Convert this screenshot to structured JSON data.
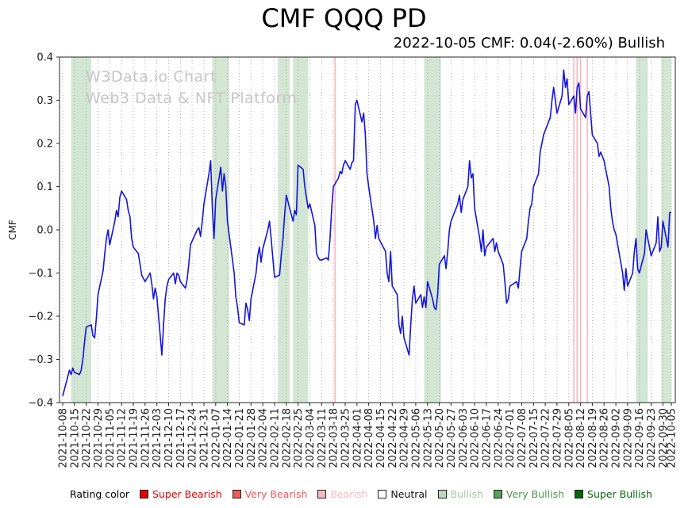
{
  "title": "CMF QQQ PD",
  "subtitle": "2022-10-05 CMF: 0.04(-2.60%) Bullish",
  "watermark": {
    "line1": "W3Data.io Chart",
    "line2": "Web3 Data & NFT Platform"
  },
  "legend": {
    "label": "Rating color",
    "items": [
      {
        "label": "Super Bearish",
        "color": "#e40303",
        "text_color": "#e40303"
      },
      {
        "label": "Very Bearish",
        "color": "#f15858",
        "text_color": "#f15858"
      },
      {
        "label": "Bearish",
        "color": "#f6b9c3",
        "text_color": "#f6b9c3"
      },
      {
        "label": "Neutral",
        "color": "#ffffff",
        "text_color": "#111111"
      },
      {
        "label": "Bullish",
        "color": "#bcd9bc",
        "text_color": "#a9c4a9"
      },
      {
        "label": "Very Bullish",
        "color": "#57a057",
        "text_color": "#4d9a4d"
      },
      {
        "label": "Super Bullish",
        "color": "#076607",
        "text_color": "#076607"
      }
    ]
  },
  "chart_data": {
    "type": "line",
    "title": "CMF QQQ PD",
    "xlabel": "",
    "ylabel": "CMF",
    "ylim": [
      -0.4,
      0.4
    ],
    "x_range": [
      "2021-10-08",
      "2022-10-05"
    ],
    "grid": "vertical-dotted",
    "line_color": "#1414dd",
    "band_color": "#d3e5d3",
    "bearish_line_color": "#f7adb7",
    "yticks": [
      0.4,
      0.3,
      0.2,
      0.1,
      0.0,
      -0.1,
      -0.2,
      -0.3,
      -0.4
    ],
    "ytick_labels": [
      "0.4",
      "0.3",
      "0.2",
      "0.1",
      "0.0",
      "−0.1",
      "−0.2",
      "−0.3",
      "−0.4"
    ],
    "xticks": [
      "2021-10-08",
      "2021-10-15",
      "2021-10-22",
      "2021-10-29",
      "2021-11-05",
      "2021-11-12",
      "2021-11-19",
      "2021-11-26",
      "2021-12-03",
      "2021-12-10",
      "2021-12-17",
      "2021-12-24",
      "2021-12-31",
      "2022-01-07",
      "2022-01-14",
      "2022-01-21",
      "2022-01-28",
      "2022-02-04",
      "2022-02-11",
      "2022-02-18",
      "2022-02-25",
      "2022-03-04",
      "2022-03-11",
      "2022-03-18",
      "2022-03-25",
      "2022-04-01",
      "2022-04-08",
      "2022-04-15",
      "2022-04-22",
      "2022-04-29",
      "2022-05-06",
      "2022-05-13",
      "2022-05-20",
      "2022-05-27",
      "2022-06-03",
      "2022-06-10",
      "2022-06-17",
      "2022-06-24",
      "2022-07-01",
      "2022-07-08",
      "2022-07-15",
      "2022-07-22",
      "2022-07-29",
      "2022-08-05",
      "2022-08-12",
      "2022-08-19",
      "2022-08-26",
      "2022-09-02",
      "2022-09-09",
      "2022-09-16",
      "2022-09-23",
      "2022-09-30",
      "2022-10-05"
    ],
    "bullish_bands": [
      [
        "2021-10-13",
        "2021-10-25"
      ],
      [
        "2022-01-05",
        "2022-01-15"
      ],
      [
        "2022-02-13",
        "2022-02-20"
      ],
      [
        "2022-02-22",
        "2022-03-03"
      ],
      [
        "2022-05-11",
        "2022-05-21"
      ],
      [
        "2022-09-14",
        "2022-09-21"
      ],
      [
        "2022-09-29",
        "2022-10-05"
      ]
    ],
    "bearish_lines": [
      "2022-03-19",
      "2022-08-08",
      "2022-08-10",
      "2022-08-12",
      "2022-08-16"
    ],
    "series_name": "CMF",
    "points": [
      [
        "2021-10-08",
        -0.385
      ],
      [
        "2021-10-11",
        -0.34
      ],
      [
        "2021-10-12",
        -0.325
      ],
      [
        "2021-10-13",
        -0.335
      ],
      [
        "2021-10-14",
        -0.32
      ],
      [
        "2021-10-15",
        -0.33
      ],
      [
        "2021-10-18",
        -0.335
      ],
      [
        "2021-10-19",
        -0.325
      ],
      [
        "2021-10-20",
        -0.3
      ],
      [
        "2021-10-21",
        -0.26
      ],
      [
        "2021-10-22",
        -0.225
      ],
      [
        "2021-10-25",
        -0.22
      ],
      [
        "2021-10-26",
        -0.245
      ],
      [
        "2021-10-27",
        -0.25
      ],
      [
        "2021-10-28",
        -0.205
      ],
      [
        "2021-10-29",
        -0.15
      ],
      [
        "2021-11-01",
        -0.095
      ],
      [
        "2021-11-02",
        -0.055
      ],
      [
        "2021-11-03",
        -0.02
      ],
      [
        "2021-11-04",
        0.0
      ],
      [
        "2021-11-05",
        -0.035
      ],
      [
        "2021-11-08",
        0.02
      ],
      [
        "2021-11-09",
        0.045
      ],
      [
        "2021-11-10",
        0.03
      ],
      [
        "2021-11-11",
        0.075
      ],
      [
        "2021-11-12",
        0.09
      ],
      [
        "2021-11-15",
        0.07
      ],
      [
        "2021-11-16",
        0.045
      ],
      [
        "2021-11-17",
        0.03
      ],
      [
        "2021-11-18",
        -0.02
      ],
      [
        "2021-11-19",
        -0.04
      ],
      [
        "2021-11-22",
        -0.055
      ],
      [
        "2021-11-23",
        -0.08
      ],
      [
        "2021-11-24",
        -0.105
      ],
      [
        "2021-11-26",
        -0.12
      ],
      [
        "2021-11-29",
        -0.1
      ],
      [
        "2021-11-30",
        -0.125
      ],
      [
        "2021-12-01",
        -0.16
      ],
      [
        "2021-12-02",
        -0.135
      ],
      [
        "2021-12-03",
        -0.155
      ],
      [
        "2021-12-06",
        -0.29
      ],
      [
        "2021-12-07",
        -0.22
      ],
      [
        "2021-12-08",
        -0.16
      ],
      [
        "2021-12-09",
        -0.13
      ],
      [
        "2021-12-10",
        -0.115
      ],
      [
        "2021-12-13",
        -0.1
      ],
      [
        "2021-12-14",
        -0.125
      ],
      [
        "2021-12-15",
        -0.1
      ],
      [
        "2021-12-16",
        -0.105
      ],
      [
        "2021-12-17",
        -0.12
      ],
      [
        "2021-12-20",
        -0.135
      ],
      [
        "2021-12-21",
        -0.115
      ],
      [
        "2021-12-22",
        -0.08
      ],
      [
        "2021-12-23",
        -0.035
      ],
      [
        "2021-12-27",
        0.0
      ],
      [
        "2021-12-28",
        0.005
      ],
      [
        "2021-12-29",
        -0.015
      ],
      [
        "2021-12-30",
        0.02
      ],
      [
        "2021-12-31",
        0.06
      ],
      [
        "2022-01-03",
        0.13
      ],
      [
        "2022-01-04",
        0.16
      ],
      [
        "2022-01-05",
        0.05
      ],
      [
        "2022-01-06",
        -0.02
      ],
      [
        "2022-01-07",
        0.07
      ],
      [
        "2022-01-10",
        0.145
      ],
      [
        "2022-01-11",
        0.09
      ],
      [
        "2022-01-12",
        0.13
      ],
      [
        "2022-01-13",
        0.1
      ],
      [
        "2022-01-14",
        0.02
      ],
      [
        "2022-01-18",
        -0.1
      ],
      [
        "2022-01-19",
        -0.155
      ],
      [
        "2022-01-20",
        -0.18
      ],
      [
        "2022-01-21",
        -0.215
      ],
      [
        "2022-01-24",
        -0.22
      ],
      [
        "2022-01-25",
        -0.17
      ],
      [
        "2022-01-26",
        -0.185
      ],
      [
        "2022-01-27",
        -0.21
      ],
      [
        "2022-01-28",
        -0.16
      ],
      [
        "2022-01-31",
        -0.1
      ],
      [
        "2022-02-01",
        -0.06
      ],
      [
        "2022-02-02",
        -0.04
      ],
      [
        "2022-02-03",
        -0.075
      ],
      [
        "2022-02-04",
        -0.045
      ],
      [
        "2022-02-07",
        0.0
      ],
      [
        "2022-02-08",
        0.02
      ],
      [
        "2022-02-09",
        -0.02
      ],
      [
        "2022-02-10",
        -0.065
      ],
      [
        "2022-02-11",
        -0.11
      ],
      [
        "2022-02-14",
        -0.105
      ],
      [
        "2022-02-15",
        -0.06
      ],
      [
        "2022-02-16",
        -0.02
      ],
      [
        "2022-02-17",
        0.035
      ],
      [
        "2022-02-18",
        0.08
      ],
      [
        "2022-02-22",
        0.02
      ],
      [
        "2022-02-23",
        0.045
      ],
      [
        "2022-02-24",
        0.035
      ],
      [
        "2022-02-25",
        0.15
      ],
      [
        "2022-02-28",
        0.14
      ],
      [
        "2022-03-01",
        0.1
      ],
      [
        "2022-03-02",
        0.075
      ],
      [
        "2022-03-03",
        0.05
      ],
      [
        "2022-03-04",
        0.06
      ],
      [
        "2022-03-07",
        0.01
      ],
      [
        "2022-03-08",
        -0.055
      ],
      [
        "2022-03-09",
        -0.065
      ],
      [
        "2022-03-10",
        -0.07
      ],
      [
        "2022-03-11",
        -0.07
      ],
      [
        "2022-03-14",
        -0.065
      ],
      [
        "2022-03-15",
        -0.07
      ],
      [
        "2022-03-16",
        -0.02
      ],
      [
        "2022-03-17",
        0.05
      ],
      [
        "2022-03-18",
        0.1
      ],
      [
        "2022-03-21",
        0.12
      ],
      [
        "2022-03-22",
        0.135
      ],
      [
        "2022-03-23",
        0.13
      ],
      [
        "2022-03-24",
        0.15
      ],
      [
        "2022-03-25",
        0.16
      ],
      [
        "2022-03-28",
        0.14
      ],
      [
        "2022-03-29",
        0.155
      ],
      [
        "2022-03-30",
        0.16
      ],
      [
        "2022-03-31",
        0.29
      ],
      [
        "2022-04-01",
        0.3
      ],
      [
        "2022-04-04",
        0.25
      ],
      [
        "2022-04-05",
        0.27
      ],
      [
        "2022-04-06",
        0.22
      ],
      [
        "2022-04-07",
        0.13
      ],
      [
        "2022-04-08",
        0.1
      ],
      [
        "2022-04-11",
        0.02
      ],
      [
        "2022-04-12",
        -0.02
      ],
      [
        "2022-04-13",
        0.01
      ],
      [
        "2022-04-14",
        -0.02
      ],
      [
        "2022-04-18",
        -0.05
      ],
      [
        "2022-04-19",
        -0.1
      ],
      [
        "2022-04-20",
        -0.12
      ],
      [
        "2022-04-21",
        -0.05
      ],
      [
        "2022-04-22",
        -0.13
      ],
      [
        "2022-04-25",
        -0.15
      ],
      [
        "2022-04-26",
        -0.22
      ],
      [
        "2022-04-27",
        -0.24
      ],
      [
        "2022-04-28",
        -0.2
      ],
      [
        "2022-04-29",
        -0.25
      ],
      [
        "2022-05-02",
        -0.29
      ],
      [
        "2022-05-03",
        -0.22
      ],
      [
        "2022-05-04",
        -0.16
      ],
      [
        "2022-05-05",
        -0.13
      ],
      [
        "2022-05-06",
        -0.17
      ],
      [
        "2022-05-09",
        -0.15
      ],
      [
        "2022-05-10",
        -0.18
      ],
      [
        "2022-05-11",
        -0.155
      ],
      [
        "2022-05-12",
        -0.18
      ],
      [
        "2022-05-13",
        -0.12
      ],
      [
        "2022-05-16",
        -0.16
      ],
      [
        "2022-05-17",
        -0.18
      ],
      [
        "2022-05-18",
        -0.185
      ],
      [
        "2022-05-19",
        -0.15
      ],
      [
        "2022-05-20",
        -0.08
      ],
      [
        "2022-05-23",
        -0.06
      ],
      [
        "2022-05-24",
        -0.09
      ],
      [
        "2022-05-25",
        -0.05
      ],
      [
        "2022-05-26",
        0.0
      ],
      [
        "2022-05-27",
        0.02
      ],
      [
        "2022-05-31",
        0.06
      ],
      [
        "2022-06-01",
        0.08
      ],
      [
        "2022-06-02",
        0.04
      ],
      [
        "2022-06-03",
        0.07
      ],
      [
        "2022-06-06",
        0.1
      ],
      [
        "2022-06-07",
        0.16
      ],
      [
        "2022-06-08",
        0.12
      ],
      [
        "2022-06-09",
        0.13
      ],
      [
        "2022-06-10",
        0.05
      ],
      [
        "2022-06-13",
        -0.02
      ],
      [
        "2022-06-14",
        -0.05
      ],
      [
        "2022-06-15",
        0.0
      ],
      [
        "2022-06-16",
        -0.06
      ],
      [
        "2022-06-17",
        -0.04
      ],
      [
        "2022-06-21",
        -0.02
      ],
      [
        "2022-06-22",
        -0.05
      ],
      [
        "2022-06-23",
        -0.03
      ],
      [
        "2022-06-24",
        -0.05
      ],
      [
        "2022-06-27",
        -0.08
      ],
      [
        "2022-06-28",
        -0.12
      ],
      [
        "2022-06-29",
        -0.17
      ],
      [
        "2022-06-30",
        -0.16
      ],
      [
        "2022-07-01",
        -0.13
      ],
      [
        "2022-07-05",
        -0.12
      ],
      [
        "2022-07-06",
        -0.135
      ],
      [
        "2022-07-07",
        -0.09
      ],
      [
        "2022-07-08",
        -0.05
      ],
      [
        "2022-07-11",
        -0.02
      ],
      [
        "2022-07-12",
        0.02
      ],
      [
        "2022-07-13",
        0.05
      ],
      [
        "2022-07-14",
        0.06
      ],
      [
        "2022-07-15",
        0.1
      ],
      [
        "2022-07-18",
        0.13
      ],
      [
        "2022-07-19",
        0.18
      ],
      [
        "2022-07-20",
        0.2
      ],
      [
        "2022-07-21",
        0.22
      ],
      [
        "2022-07-22",
        0.23
      ],
      [
        "2022-07-25",
        0.26
      ],
      [
        "2022-07-26",
        0.3
      ],
      [
        "2022-07-27",
        0.33
      ],
      [
        "2022-07-28",
        0.3
      ],
      [
        "2022-07-29",
        0.27
      ],
      [
        "2022-08-01",
        0.31
      ],
      [
        "2022-08-02",
        0.37
      ],
      [
        "2022-08-03",
        0.33
      ],
      [
        "2022-08-04",
        0.35
      ],
      [
        "2022-08-05",
        0.29
      ],
      [
        "2022-08-08",
        0.31
      ],
      [
        "2022-08-09",
        0.27
      ],
      [
        "2022-08-10",
        0.33
      ],
      [
        "2022-08-11",
        0.34
      ],
      [
        "2022-08-12",
        0.28
      ],
      [
        "2022-08-15",
        0.26
      ],
      [
        "2022-08-16",
        0.31
      ],
      [
        "2022-08-17",
        0.32
      ],
      [
        "2022-08-18",
        0.27
      ],
      [
        "2022-08-19",
        0.22
      ],
      [
        "2022-08-22",
        0.2
      ],
      [
        "2022-08-23",
        0.17
      ],
      [
        "2022-08-24",
        0.18
      ],
      [
        "2022-08-25",
        0.17
      ],
      [
        "2022-08-26",
        0.16
      ],
      [
        "2022-08-29",
        0.1
      ],
      [
        "2022-08-30",
        0.05
      ],
      [
        "2022-08-31",
        0.02
      ],
      [
        "2022-09-01",
        0.0
      ],
      [
        "2022-09-02",
        -0.01
      ],
      [
        "2022-09-06",
        -0.1
      ],
      [
        "2022-09-07",
        -0.14
      ],
      [
        "2022-09-08",
        -0.09
      ],
      [
        "2022-09-09",
        -0.13
      ],
      [
        "2022-09-12",
        -0.1
      ],
      [
        "2022-09-13",
        -0.05
      ],
      [
        "2022-09-14",
        -0.02
      ],
      [
        "2022-09-15",
        -0.09
      ],
      [
        "2022-09-16",
        -0.1
      ],
      [
        "2022-09-19",
        -0.055
      ],
      [
        "2022-09-20",
        0.0
      ],
      [
        "2022-09-21",
        -0.02
      ],
      [
        "2022-09-22",
        -0.04
      ],
      [
        "2022-09-23",
        -0.06
      ],
      [
        "2022-09-26",
        -0.03
      ],
      [
        "2022-09-27",
        0.03
      ],
      [
        "2022-09-28",
        -0.05
      ],
      [
        "2022-09-29",
        -0.04
      ],
      [
        "2022-09-30",
        0.02
      ],
      [
        "2022-10-03",
        -0.04
      ],
      [
        "2022-10-04",
        0.04
      ],
      [
        "2022-10-05",
        0.04
      ]
    ]
  }
}
